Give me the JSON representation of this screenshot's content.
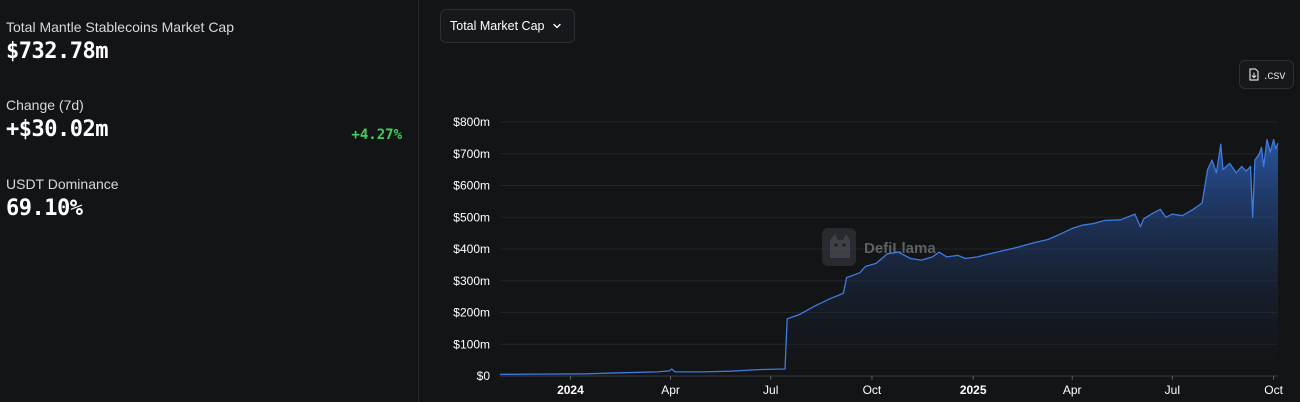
{
  "summary": {
    "mcap_label": "Total Mantle Stablecoins Market Cap",
    "mcap_value": "$732.78m",
    "change_label": "Change (7d)",
    "change_value": "+$30.02m",
    "change_pct": "+4.27%",
    "dominance_label": "USDT Dominance",
    "dominance_value": "69.10%"
  },
  "colors": {
    "accent": "#3e7be0",
    "positive": "#3fcf5d",
    "grid": "#22252b",
    "axis_text": "#ffffff"
  },
  "controls": {
    "metric_select": "Total Market Cap",
    "metric_select_icon": "chevron-down-icon",
    "csv_label": ".csv",
    "csv_icon": "file-download-icon"
  },
  "watermark": {
    "text": "DefiLlama"
  },
  "chart_data": {
    "type": "area",
    "title": "",
    "xlabel": "",
    "ylabel": "",
    "y_ticks": [
      "$0",
      "$100m",
      "$200m",
      "$300m",
      "$400m",
      "$500m",
      "$600m",
      "$700m",
      "$800m"
    ],
    "ylim": [
      0,
      800
    ],
    "y_unit": "millions USD",
    "x_ticks": [
      {
        "label": "2024",
        "date": "2024-01-01",
        "bold": true
      },
      {
        "label": "Apr",
        "date": "2024-04-01",
        "bold": false
      },
      {
        "label": "Jul",
        "date": "2024-07-01",
        "bold": false
      },
      {
        "label": "Oct",
        "date": "2024-10-01",
        "bold": false
      },
      {
        "label": "2025",
        "date": "2025-01-01",
        "bold": true
      },
      {
        "label": "Apr",
        "date": "2025-04-01",
        "bold": false
      },
      {
        "label": "Jul",
        "date": "2025-07-01",
        "bold": false
      },
      {
        "label": "Oct",
        "date": "2025-10-01",
        "bold": false
      }
    ],
    "xlim": [
      "2023-10-29",
      "2025-10-05"
    ],
    "grid": true,
    "series": [
      {
        "name": "",
        "points": [
          [
            "2023-10-29",
            5
          ],
          [
            "2023-12-01",
            6
          ],
          [
            "2024-01-15",
            7
          ],
          [
            "2024-02-15",
            10
          ],
          [
            "2024-03-20",
            13
          ],
          [
            "2024-03-31",
            16
          ],
          [
            "2024-04-02",
            22
          ],
          [
            "2024-04-05",
            13
          ],
          [
            "2024-05-01",
            13
          ],
          [
            "2024-05-25",
            15
          ],
          [
            "2024-06-20",
            20
          ],
          [
            "2024-07-14",
            22
          ],
          [
            "2024-07-16",
            180
          ],
          [
            "2024-07-28",
            195
          ],
          [
            "2024-08-10",
            220
          ],
          [
            "2024-08-25",
            245
          ],
          [
            "2024-09-05",
            260
          ],
          [
            "2024-09-08",
            310
          ],
          [
            "2024-09-20",
            325
          ],
          [
            "2024-09-25",
            345
          ],
          [
            "2024-10-05",
            355
          ],
          [
            "2024-10-15",
            385
          ],
          [
            "2024-10-25",
            390
          ],
          [
            "2024-11-05",
            370
          ],
          [
            "2024-11-15",
            365
          ],
          [
            "2024-11-25",
            375
          ],
          [
            "2024-12-01",
            390
          ],
          [
            "2024-12-08",
            375
          ],
          [
            "2024-12-18",
            380
          ],
          [
            "2024-12-25",
            370
          ],
          [
            "2025-01-05",
            375
          ],
          [
            "2025-01-10",
            380
          ],
          [
            "2025-01-25",
            392
          ],
          [
            "2025-02-10",
            405
          ],
          [
            "2025-02-25",
            420
          ],
          [
            "2025-03-10",
            430
          ],
          [
            "2025-03-20",
            445
          ],
          [
            "2025-04-01",
            465
          ],
          [
            "2025-04-10",
            475
          ],
          [
            "2025-04-20",
            480
          ],
          [
            "2025-05-01",
            490
          ],
          [
            "2025-05-15",
            492
          ],
          [
            "2025-05-28",
            510
          ],
          [
            "2025-06-02",
            470
          ],
          [
            "2025-06-05",
            495
          ],
          [
            "2025-06-12",
            510
          ],
          [
            "2025-06-20",
            525
          ],
          [
            "2025-06-25",
            500
          ],
          [
            "2025-07-01",
            510
          ],
          [
            "2025-07-10",
            505
          ],
          [
            "2025-07-20",
            525
          ],
          [
            "2025-07-28",
            545
          ],
          [
            "2025-08-02",
            650
          ],
          [
            "2025-08-06",
            680
          ],
          [
            "2025-08-10",
            640
          ],
          [
            "2025-08-14",
            730
          ],
          [
            "2025-08-16",
            650
          ],
          [
            "2025-08-22",
            670
          ],
          [
            "2025-08-28",
            640
          ],
          [
            "2025-09-02",
            660
          ],
          [
            "2025-09-06",
            645
          ],
          [
            "2025-09-10",
            660
          ],
          [
            "2025-09-12",
            500
          ],
          [
            "2025-09-14",
            680
          ],
          [
            "2025-09-18",
            700
          ],
          [
            "2025-09-20",
            720
          ],
          [
            "2025-09-22",
            660
          ],
          [
            "2025-09-25",
            745
          ],
          [
            "2025-09-28",
            705
          ],
          [
            "2025-10-01",
            745
          ],
          [
            "2025-10-03",
            715
          ],
          [
            "2025-10-05",
            733
          ]
        ]
      }
    ]
  }
}
